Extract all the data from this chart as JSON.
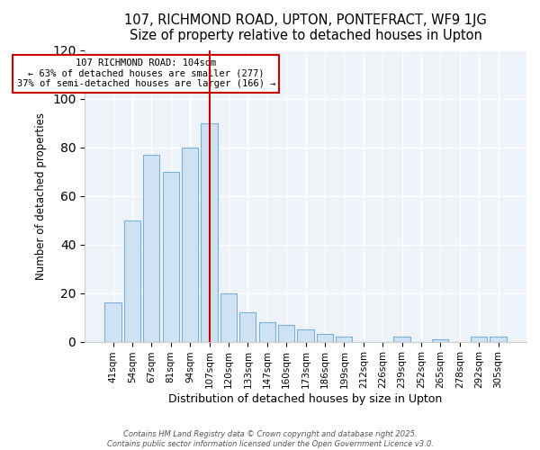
{
  "title": "107, RICHMOND ROAD, UPTON, PONTEFRACT, WF9 1JG",
  "subtitle": "Size of property relative to detached houses in Upton",
  "xlabel": "Distribution of detached houses by size in Upton",
  "ylabel": "Number of detached properties",
  "bar_labels": [
    "41sqm",
    "54sqm",
    "67sqm",
    "81sqm",
    "94sqm",
    "107sqm",
    "120sqm",
    "133sqm",
    "147sqm",
    "160sqm",
    "173sqm",
    "186sqm",
    "199sqm",
    "212sqm",
    "226sqm",
    "239sqm",
    "252sqm",
    "265sqm",
    "278sqm",
    "292sqm",
    "305sqm"
  ],
  "bar_values": [
    16,
    50,
    77,
    70,
    80,
    90,
    20,
    12,
    8,
    7,
    5,
    3,
    2,
    0,
    0,
    2,
    0,
    1,
    0,
    2,
    2
  ],
  "bar_color": "#cfe2f3",
  "bar_edge_color": "#7ab0d8",
  "vline_x_idx": 5,
  "vline_color": "#cc0000",
  "annotation_line1": "107 RICHMOND ROAD: 104sqm",
  "annotation_line2": "← 63% of detached houses are smaller (277)",
  "annotation_line3": "37% of semi-detached houses are larger (166) →",
  "annotation_box_color": "white",
  "annotation_box_edge": "#cc0000",
  "ylim": [
    0,
    120
  ],
  "yticks": [
    0,
    20,
    40,
    60,
    80,
    100,
    120
  ],
  "footer1": "Contains HM Land Registry data © Crown copyright and database right 2025.",
  "footer2": "Contains public sector information licensed under the Open Government Licence v3.0.",
  "bg_color": "#ffffff",
  "plot_bg_color": "#eef3fa",
  "grid_color": "#ffffff"
}
